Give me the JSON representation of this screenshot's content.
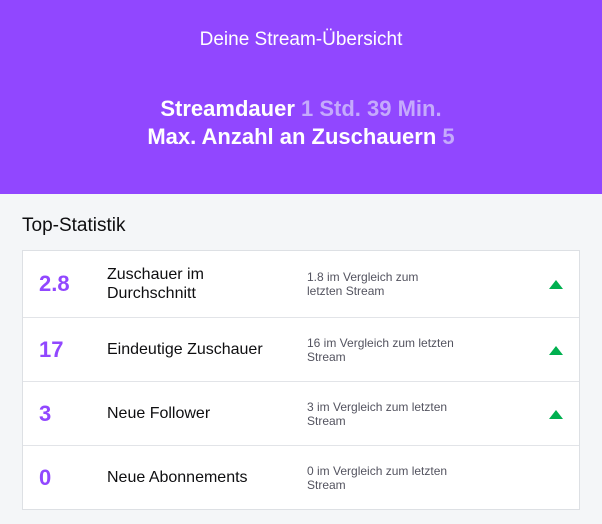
{
  "hero": {
    "subtitle": "Deine Stream-Übersicht",
    "duration_label": "Streamdauer",
    "duration_value": "1 Std. 39 Min.",
    "max_viewers_label": "Max. Anzahl an Zuschauern",
    "max_viewers_value": "5"
  },
  "stats": {
    "title": "Top-Statistik",
    "rows": [
      {
        "value": "2.8",
        "label": "Zuschauer im Durchschnitt",
        "comparison": "1.8 im Vergleich zum letzten Stream",
        "trend": "up-arrow-icon"
      },
      {
        "value": "17",
        "label": "Eindeutige Zuschauer",
        "comparison": "16 im Vergleich zum letzten Stream",
        "trend": "up-arrow-icon"
      },
      {
        "value": "3",
        "label": "Neue Follower",
        "comparison": "3 im Vergleich zum letzten Stream",
        "trend": "up-arrow-icon"
      },
      {
        "value": "0",
        "label": "Neue Abonnements",
        "comparison": "0 im Vergleich zum letzten Stream",
        "trend": ""
      }
    ]
  },
  "colors": {
    "brand": "#9147ff",
    "muted_highlight": "#c5aafc",
    "trend_up": "#00b04f"
  }
}
